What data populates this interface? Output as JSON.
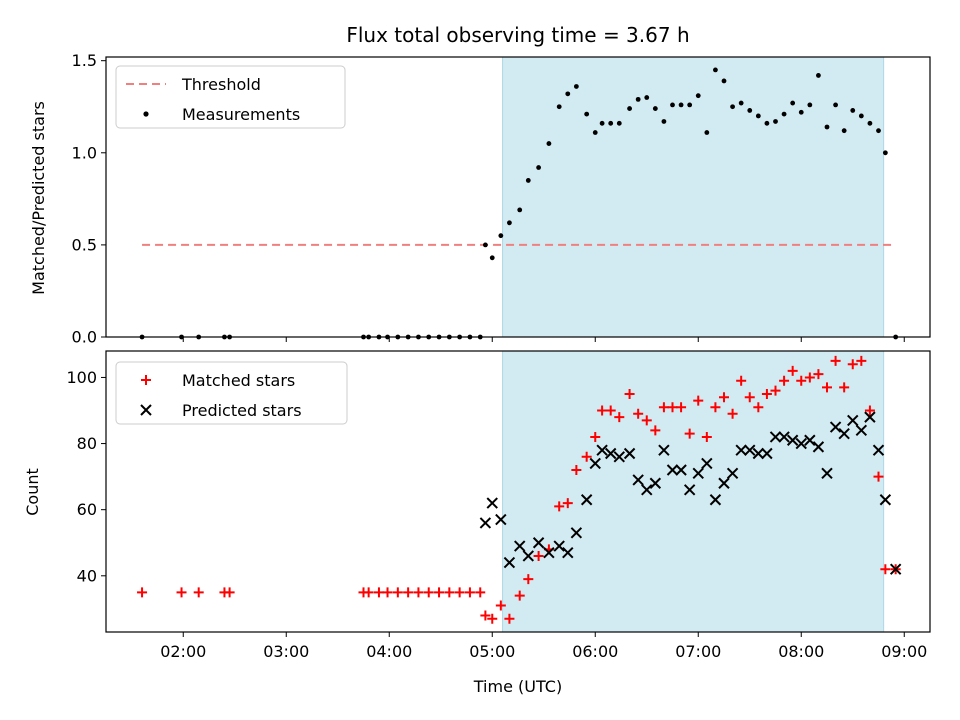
{
  "title": "Flux total observing time = 3.67 h",
  "colors": {
    "threshold": "#f08080",
    "measurement": "#000000",
    "matched": "#ff0000",
    "predicted": "#000000",
    "span": "#add8e6"
  },
  "chart_data": [
    {
      "type": "scatter",
      "ylabel": "Matched/Predicted stars",
      "xlim": [
        "01:15",
        "09:15"
      ],
      "ylim": [
        0,
        1.52
      ],
      "yticks": [
        "0.0",
        "0.5",
        "1.0",
        "1.5"
      ],
      "ytick_values": [
        0,
        0.5,
        1.0,
        1.5
      ],
      "shaded_span": [
        "05:06",
        "08:48"
      ],
      "legend": {
        "placement": "top-left",
        "entries": [
          "Threshold",
          "Measurements"
        ]
      },
      "threshold": {
        "name": "Threshold",
        "value": 0.5,
        "x": [
          "01:36",
          "08:53"
        ]
      },
      "series": [
        {
          "name": "Measurements",
          "marker": "dot",
          "points": [
            [
              "01:36",
              0
            ],
            [
              "01:59",
              0
            ],
            [
              "02:09",
              0
            ],
            [
              "02:24",
              0
            ],
            [
              "02:27",
              0
            ],
            [
              "03:45",
              0
            ],
            [
              "03:48",
              0
            ],
            [
              "03:54",
              0
            ],
            [
              "03:59",
              0
            ],
            [
              "04:05",
              0
            ],
            [
              "04:11",
              0
            ],
            [
              "04:17",
              0
            ],
            [
              "04:23",
              0
            ],
            [
              "04:29",
              0
            ],
            [
              "04:35",
              0
            ],
            [
              "04:41",
              0
            ],
            [
              "04:47",
              0
            ],
            [
              "04:53",
              0
            ],
            [
              "04:56",
              0.5
            ],
            [
              "05:00",
              0.43
            ],
            [
              "05:05",
              0.55
            ],
            [
              "05:10",
              0.62
            ],
            [
              "05:16",
              0.69
            ],
            [
              "05:21",
              0.85
            ],
            [
              "05:27",
              0.92
            ],
            [
              "05:33",
              1.05
            ],
            [
              "05:39",
              1.25
            ],
            [
              "05:44",
              1.32
            ],
            [
              "05:49",
              1.36
            ],
            [
              "05:55",
              1.21
            ],
            [
              "06:00",
              1.11
            ],
            [
              "06:04",
              1.16
            ],
            [
              "06:09",
              1.16
            ],
            [
              "06:14",
              1.16
            ],
            [
              "06:20",
              1.24
            ],
            [
              "06:25",
              1.29
            ],
            [
              "06:30",
              1.3
            ],
            [
              "06:35",
              1.24
            ],
            [
              "06:40",
              1.17
            ],
            [
              "06:45",
              1.26
            ],
            [
              "06:50",
              1.26
            ],
            [
              "06:55",
              1.26
            ],
            [
              "07:00",
              1.31
            ],
            [
              "07:05",
              1.11
            ],
            [
              "07:10",
              1.45
            ],
            [
              "07:15",
              1.39
            ],
            [
              "07:20",
              1.25
            ],
            [
              "07:25",
              1.27
            ],
            [
              "07:30",
              1.23
            ],
            [
              "07:35",
              1.2
            ],
            [
              "07:40",
              1.16
            ],
            [
              "07:45",
              1.17
            ],
            [
              "07:50",
              1.21
            ],
            [
              "07:55",
              1.27
            ],
            [
              "08:00",
              1.22
            ],
            [
              "08:05",
              1.26
            ],
            [
              "08:10",
              1.42
            ],
            [
              "08:15",
              1.14
            ],
            [
              "08:20",
              1.26
            ],
            [
              "08:25",
              1.12
            ],
            [
              "08:30",
              1.23
            ],
            [
              "08:35",
              1.2
            ],
            [
              "08:40",
              1.16
            ],
            [
              "08:45",
              1.12
            ],
            [
              "08:49",
              1.0
            ],
            [
              "08:55",
              0
            ]
          ]
        }
      ]
    },
    {
      "type": "scatter",
      "xlabel": "Time (UTC)",
      "ylabel": "Count",
      "xlim": [
        "01:15",
        "09:15"
      ],
      "ylim": [
        23,
        108
      ],
      "xticks": [
        "02:00",
        "03:00",
        "04:00",
        "05:00",
        "06:00",
        "07:00",
        "08:00",
        "09:00"
      ],
      "yticks": [
        "40",
        "60",
        "80",
        "100"
      ],
      "ytick_values": [
        40,
        60,
        80,
        100
      ],
      "shaded_span": [
        "05:06",
        "08:48"
      ],
      "legend": {
        "placement": "top-left",
        "entries": [
          "Matched stars",
          "Predicted stars"
        ]
      },
      "series": [
        {
          "name": "Matched stars",
          "marker": "plus",
          "points": [
            [
              "01:36",
              35
            ],
            [
              "01:59",
              35
            ],
            [
              "02:09",
              35
            ],
            [
              "02:24",
              35
            ],
            [
              "02:27",
              35
            ],
            [
              "03:45",
              35
            ],
            [
              "03:48",
              35
            ],
            [
              "03:54",
              35
            ],
            [
              "03:59",
              35
            ],
            [
              "04:05",
              35
            ],
            [
              "04:11",
              35
            ],
            [
              "04:17",
              35
            ],
            [
              "04:23",
              35
            ],
            [
              "04:29",
              35
            ],
            [
              "04:35",
              35
            ],
            [
              "04:41",
              35
            ],
            [
              "04:47",
              35
            ],
            [
              "04:53",
              35
            ],
            [
              "04:56",
              28
            ],
            [
              "05:00",
              27
            ],
            [
              "05:05",
              31
            ],
            [
              "05:10",
              27
            ],
            [
              "05:16",
              34
            ],
            [
              "05:21",
              39
            ],
            [
              "05:27",
              46
            ],
            [
              "05:33",
              48
            ],
            [
              "05:39",
              61
            ],
            [
              "05:44",
              62
            ],
            [
              "05:49",
              72
            ],
            [
              "05:55",
              76
            ],
            [
              "06:00",
              82
            ],
            [
              "06:04",
              90
            ],
            [
              "06:09",
              90
            ],
            [
              "06:14",
              88
            ],
            [
              "06:20",
              95
            ],
            [
              "06:25",
              89
            ],
            [
              "06:30",
              87
            ],
            [
              "06:35",
              84
            ],
            [
              "06:40",
              91
            ],
            [
              "06:45",
              91
            ],
            [
              "06:50",
              91
            ],
            [
              "06:55",
              83
            ],
            [
              "07:00",
              93
            ],
            [
              "07:05",
              82
            ],
            [
              "07:10",
              91
            ],
            [
              "07:15",
              94
            ],
            [
              "07:20",
              89
            ],
            [
              "07:25",
              99
            ],
            [
              "07:30",
              94
            ],
            [
              "07:35",
              91
            ],
            [
              "07:40",
              95
            ],
            [
              "07:45",
              96
            ],
            [
              "07:50",
              99
            ],
            [
              "07:55",
              102
            ],
            [
              "08:00",
              99
            ],
            [
              "08:05",
              100
            ],
            [
              "08:10",
              101
            ],
            [
              "08:15",
              97
            ],
            [
              "08:20",
              105
            ],
            [
              "08:25",
              97
            ],
            [
              "08:30",
              104
            ],
            [
              "08:35",
              105
            ],
            [
              "08:40",
              90
            ],
            [
              "08:45",
              70
            ],
            [
              "08:49",
              42
            ],
            [
              "08:55",
              42
            ]
          ]
        },
        {
          "name": "Predicted stars",
          "marker": "x",
          "points": [
            [
              "04:56",
              56
            ],
            [
              "05:00",
              62
            ],
            [
              "05:05",
              57
            ],
            [
              "05:10",
              44
            ],
            [
              "05:16",
              49
            ],
            [
              "05:21",
              46
            ],
            [
              "05:27",
              50
            ],
            [
              "05:33",
              47
            ],
            [
              "05:39",
              49
            ],
            [
              "05:44",
              47
            ],
            [
              "05:49",
              53
            ],
            [
              "05:55",
              63
            ],
            [
              "06:00",
              74
            ],
            [
              "06:04",
              78
            ],
            [
              "06:09",
              77
            ],
            [
              "06:14",
              76
            ],
            [
              "06:20",
              77
            ],
            [
              "06:25",
              69
            ],
            [
              "06:30",
              66
            ],
            [
              "06:35",
              68
            ],
            [
              "06:40",
              78
            ],
            [
              "06:45",
              72
            ],
            [
              "06:50",
              72
            ],
            [
              "06:55",
              66
            ],
            [
              "07:00",
              71
            ],
            [
              "07:05",
              74
            ],
            [
              "07:10",
              63
            ],
            [
              "07:15",
              68
            ],
            [
              "07:20",
              71
            ],
            [
              "07:25",
              78
            ],
            [
              "07:30",
              78
            ],
            [
              "07:35",
              77
            ],
            [
              "07:40",
              77
            ],
            [
              "07:45",
              82
            ],
            [
              "07:50",
              82
            ],
            [
              "07:55",
              81
            ],
            [
              "08:00",
              80
            ],
            [
              "08:05",
              81
            ],
            [
              "08:10",
              79
            ],
            [
              "08:15",
              71
            ],
            [
              "08:20",
              85
            ],
            [
              "08:25",
              83
            ],
            [
              "08:30",
              87
            ],
            [
              "08:35",
              84
            ],
            [
              "08:40",
              88
            ],
            [
              "08:45",
              78
            ],
            [
              "08:49",
              63
            ],
            [
              "08:55",
              42
            ]
          ]
        }
      ]
    }
  ]
}
